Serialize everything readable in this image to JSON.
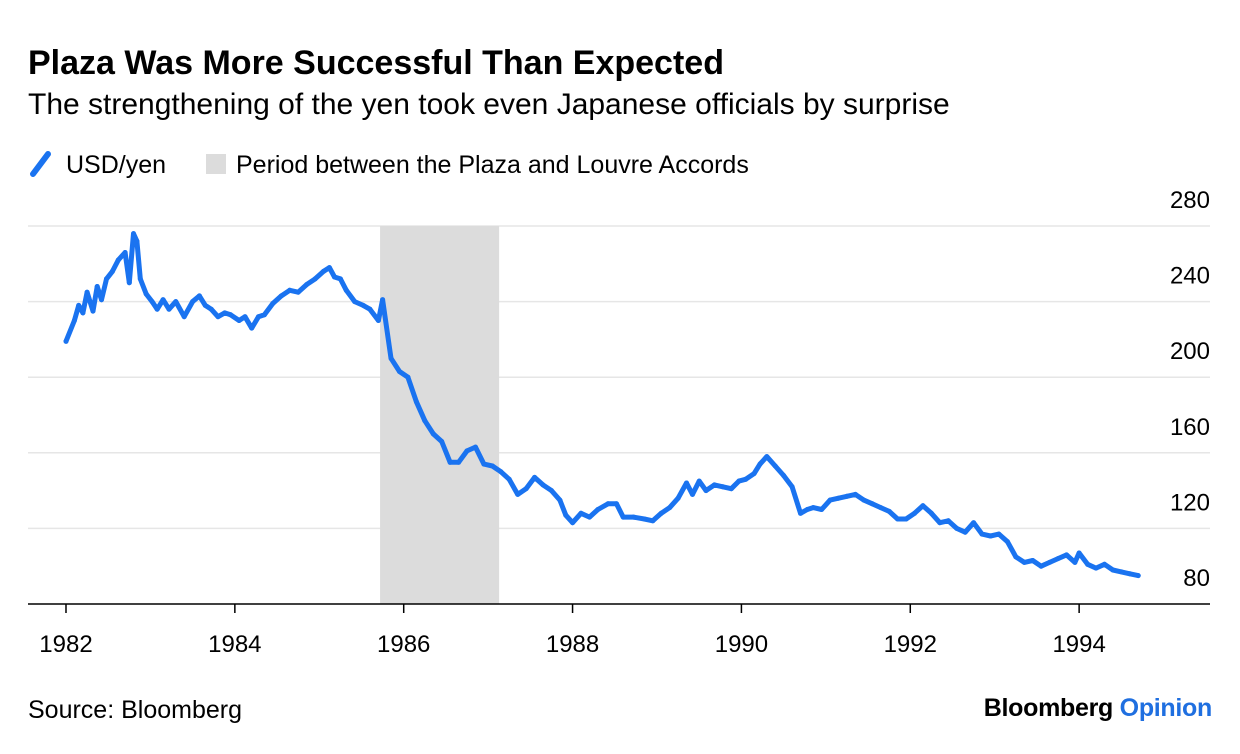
{
  "header": {
    "title": "Plaza Was More Successful Than Expected",
    "subtitle": "The strengthening of the yen took even Japanese officials by surprise"
  },
  "legend": {
    "placement": "top-left",
    "items": [
      {
        "label": "USD/yen",
        "kind": "line",
        "color": "#1a73f0"
      },
      {
        "label": "Period between the Plaza and Louvre Accords",
        "kind": "band",
        "color": "#dcdcdc"
      }
    ]
  },
  "footer": {
    "source": "Source: Bloomberg",
    "brand_name": "Bloomberg",
    "brand_sub": "Opinion"
  },
  "chart_data": {
    "type": "line",
    "title": "Plaza Was More Successful Than Expected",
    "subtitle": "The strengthening of the yen took even Japanese officials by surprise",
    "xlabel": "",
    "ylabel": "",
    "xlim": [
      1981.55,
      1995.55
    ],
    "ylim": [
      80,
      280
    ],
    "x_ticks": [
      1982,
      1984,
      1986,
      1988,
      1990,
      1992,
      1994
    ],
    "x_tick_labels": [
      "1982",
      "1984",
      "1986",
      "1988",
      "1990",
      "1992",
      "1994"
    ],
    "y_ticks": [
      80,
      120,
      160,
      200,
      240,
      280
    ],
    "y_tick_labels": [
      "80",
      "120",
      "160",
      "200",
      "240",
      "280"
    ],
    "y_axis_side": "right",
    "grid": true,
    "shaded_period": {
      "label": "Period between the Plaza and Louvre Accords",
      "x_start": 1985.72,
      "x_end": 1987.13
    },
    "series": [
      {
        "name": "USD/yen",
        "color": "#1a73f0",
        "x": [
          1982.0,
          1982.1,
          1982.15,
          1982.2,
          1982.25,
          1982.32,
          1982.37,
          1982.42,
          1982.48,
          1982.55,
          1982.62,
          1982.7,
          1982.75,
          1982.8,
          1982.84,
          1982.88,
          1982.95,
          1983.02,
          1983.08,
          1983.15,
          1983.22,
          1983.3,
          1983.4,
          1983.5,
          1983.58,
          1983.65,
          1983.72,
          1983.8,
          1983.88,
          1983.95,
          1984.05,
          1984.12,
          1984.2,
          1984.28,
          1984.35,
          1984.45,
          1984.55,
          1984.65,
          1984.75,
          1984.85,
          1984.95,
          1985.05,
          1985.12,
          1985.18,
          1985.25,
          1985.32,
          1985.42,
          1985.52,
          1985.6,
          1985.7,
          1985.75,
          1985.85,
          1985.95,
          1986.05,
          1986.15,
          1986.25,
          1986.35,
          1986.45,
          1986.55,
          1986.65,
          1986.75,
          1986.85,
          1986.95,
          1987.05,
          1987.15,
          1987.25,
          1987.35,
          1987.45,
          1987.55,
          1987.65,
          1987.75,
          1987.85,
          1987.92,
          1988.0,
          1988.1,
          1988.2,
          1988.3,
          1988.42,
          1988.52,
          1988.6,
          1988.72,
          1988.85,
          1988.95,
          1989.05,
          1989.15,
          1989.25,
          1989.35,
          1989.42,
          1989.5,
          1989.58,
          1989.68,
          1989.78,
          1989.88,
          1989.97,
          1990.05,
          1990.15,
          1990.22,
          1990.3,
          1990.4,
          1990.5,
          1990.6,
          1990.7,
          1990.78,
          1990.85,
          1990.95,
          1991.05,
          1991.15,
          1991.25,
          1991.35,
          1991.45,
          1991.55,
          1991.65,
          1991.75,
          1991.85,
          1991.95,
          1992.05,
          1992.15,
          1992.25,
          1992.35,
          1992.45,
          1992.55,
          1992.65,
          1992.75,
          1992.85,
          1992.95,
          1993.05,
          1993.15,
          1993.25,
          1993.35,
          1993.45,
          1993.55,
          1993.65,
          1993.75,
          1993.85,
          1993.95,
          1994.0,
          1994.1,
          1994.2,
          1994.3,
          1994.4,
          1994.5,
          1994.6,
          1994.7
        ],
        "y": [
          219,
          230,
          238,
          234,
          245,
          235,
          248,
          241,
          252,
          256,
          262,
          266,
          250,
          276,
          272,
          252,
          244,
          240,
          236,
          241,
          236,
          240,
          232,
          240,
          243,
          238,
          236,
          232,
          234,
          233,
          230,
          232,
          226,
          232,
          233,
          239,
          243,
          246,
          245,
          249,
          252,
          256,
          258,
          253,
          252,
          246,
          240,
          238,
          236,
          230,
          241,
          210,
          203,
          200,
          187,
          177,
          170,
          166,
          155,
          155,
          161,
          163,
          154,
          153,
          150,
          146,
          138,
          141,
          147,
          143,
          140,
          135,
          127,
          123,
          128,
          126,
          130,
          133,
          133,
          126,
          126,
          125,
          124,
          128,
          131,
          136,
          144,
          138,
          145,
          140,
          143,
          142,
          141,
          145,
          146,
          149,
          154,
          158,
          153,
          148,
          142,
          128,
          130,
          131,
          130,
          135,
          136,
          137,
          138,
          135,
          133,
          131,
          129,
          125,
          125,
          128,
          132,
          128,
          123,
          124,
          120,
          118,
          123,
          117,
          116,
          117,
          113,
          105,
          102,
          103,
          100,
          102,
          104,
          106,
          102,
          107,
          101,
          99,
          101,
          98,
          97,
          96,
          95
        ]
      }
    ]
  }
}
